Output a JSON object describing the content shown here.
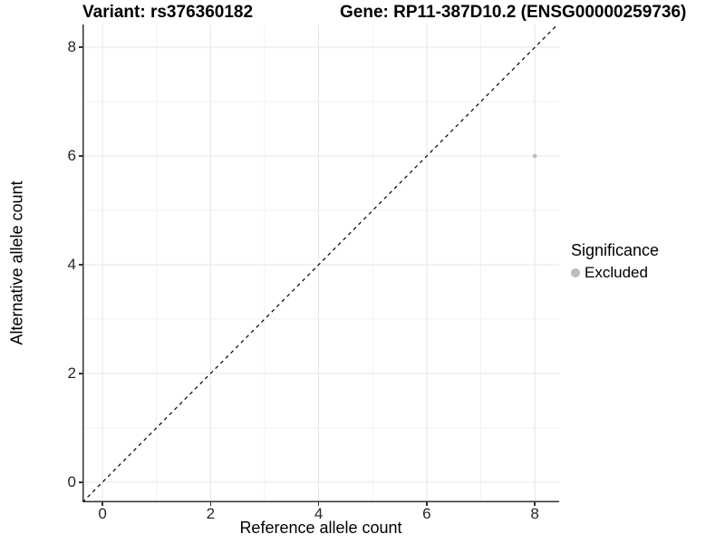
{
  "titles": {
    "variant": "Variant: rs376360182",
    "gene": "Gene: RP11-387D10.2 (ENSG00000259736)"
  },
  "axes": {
    "x_label": "Reference allele count",
    "y_label": "Alternative allele count"
  },
  "legend": {
    "title": "Significance",
    "items": [
      {
        "label": "Excluded",
        "color": "#bcbcbc"
      }
    ]
  },
  "colors": {
    "background": "#ffffff",
    "axis_line": "#333333",
    "tick_label": "#262626",
    "grid_major": "#e6e6e6",
    "grid_minor": "#f2f2f2",
    "reference_line": "#000000",
    "point": "#bcbcbc"
  },
  "chart_data": {
    "type": "scatter",
    "title": "Variant: rs376360182 / Gene: RP11-387D10.2 (ENSG00000259736)",
    "xlabel": "Reference allele count",
    "ylabel": "Alternative allele count",
    "xlim": [
      -0.37,
      8.45
    ],
    "ylim": [
      -0.37,
      8.42
    ],
    "x_ticks": [
      0,
      2,
      4,
      6,
      8
    ],
    "y_ticks": [
      0,
      2,
      4,
      6,
      8
    ],
    "x_minor_ticks": [
      1,
      3,
      5,
      7
    ],
    "y_minor_ticks": [
      1,
      3,
      5,
      7
    ],
    "grid": true,
    "legend_position": "right",
    "series": [
      {
        "name": "Excluded",
        "color": "#bcbcbc",
        "point_radius": 2.3,
        "points": [
          {
            "x": 8,
            "y": 6
          }
        ]
      }
    ],
    "reference_line": {
      "kind": "identity",
      "slope": 1,
      "intercept": 0,
      "style": "dashed",
      "color": "#000000"
    }
  }
}
